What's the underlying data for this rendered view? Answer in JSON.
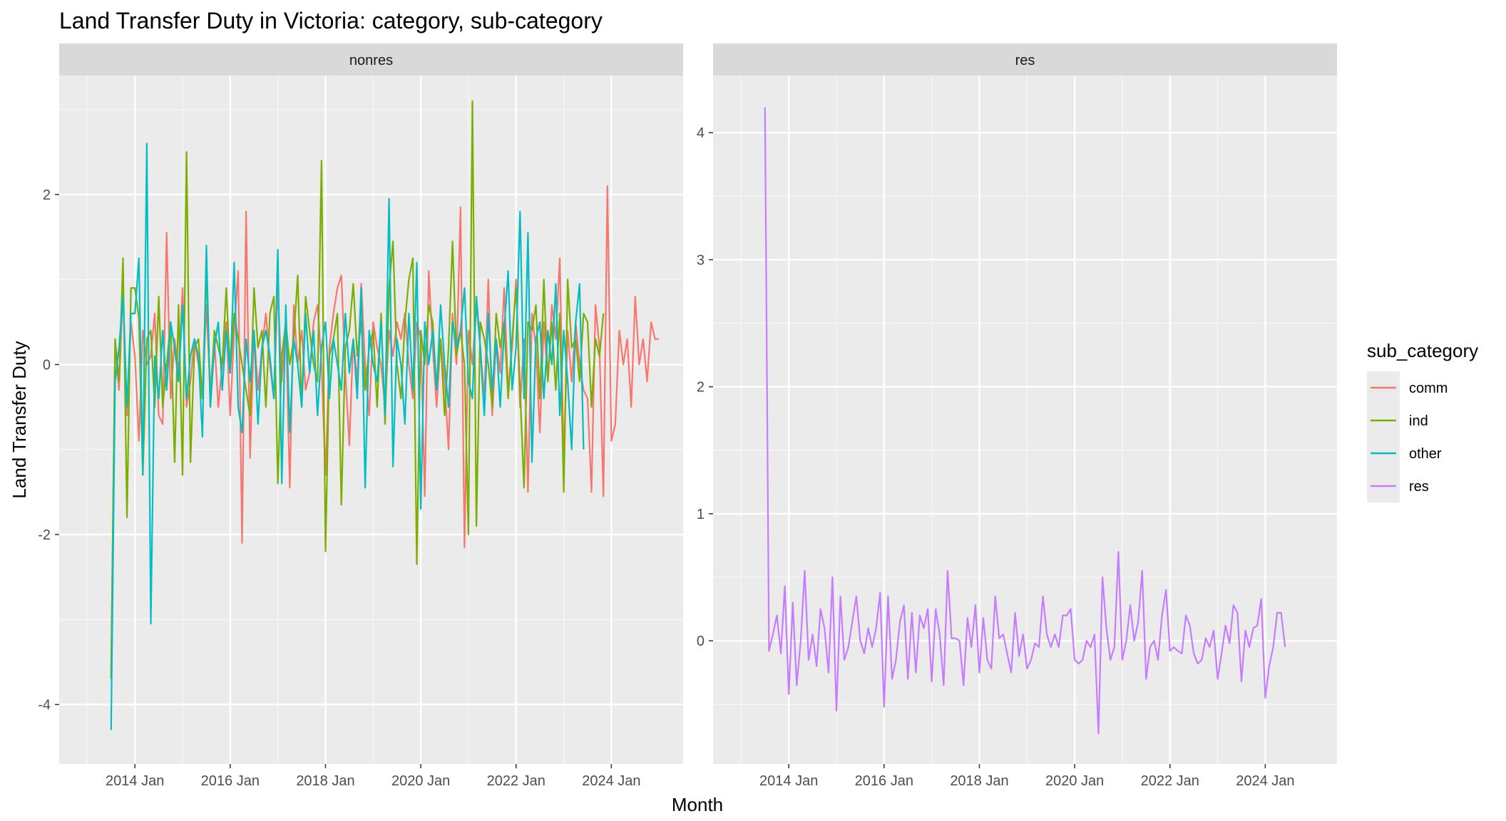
{
  "chart_data": {
    "type": "line",
    "title": "Land Transfer Duty in Victoria: category, sub-category",
    "xlabel": "Month",
    "ylabel": "Land Transfer Duty",
    "x_tick_labels": [
      "2014 Jan",
      "2016 Jan",
      "2018 Jan",
      "2020 Jan",
      "2022 Jan",
      "2024 Jan"
    ],
    "x_range": [
      "2013 Jan",
      "2024 Dec"
    ],
    "grid": true,
    "legend": {
      "title": "sub_category",
      "position": "right"
    },
    "panels": [
      {
        "name": "nonres",
        "ylim": [
          -4.7,
          3.4
        ],
        "y_ticks": [
          -4,
          -2,
          0,
          2
        ],
        "y_tick_labels": [
          "-4",
          "-2",
          "0",
          "2"
        ],
        "start": "2013 Jul",
        "series": [
          {
            "name": "comm",
            "color": "#F8766D",
            "values": [
              -3.6,
              0.2,
              -0.3,
              0.9,
              -0.6,
              0.5,
              0.1,
              -0.9,
              0.4,
              0.0,
              0.1,
              0.6,
              -0.6,
              -0.7,
              1.55,
              -0.4,
              0.3,
              -0.1,
              0.9,
              -0.5,
              -0.2,
              0.3,
              0.0,
              -0.4,
              0.7,
              -0.3,
              0.3,
              -0.5,
              0.0,
              0.5,
              -0.6,
              0.4,
              1.1,
              -2.1,
              1.8,
              -1.1,
              0.4,
              -0.3,
              0.2,
              0.6,
              0.0,
              -0.4,
              0.9,
              -0.2,
              0.5,
              -1.45,
              0.7,
              0.0,
              0.4,
              -0.3,
              -0.1,
              0.5,
              0.7,
              0.0,
              -1.3,
              0.2,
              0.6,
              0.9,
              1.05,
              -0.1,
              -0.95,
              0.3,
              -0.2,
              0.95,
              0.0,
              -0.6,
              0.5,
              0.2,
              0.0,
              -0.5,
              0.4,
              0.1,
              0.5,
              0.3,
              0.6,
              0.0,
              -0.4,
              0.5,
              0.3,
              -1.55,
              1.1,
              0.2,
              -0.5,
              0.3,
              -0.2,
              -1.0,
              0.6,
              0.0,
              1.85,
              -2.15,
              0.4,
              0.0,
              0.7,
              0.2,
              -0.4,
              1.0,
              -0.6,
              0.3,
              -0.1,
              0.9,
              -0.3,
              0.2,
              1.0,
              -0.5,
              0.3,
              -1.5,
              0.6,
              0.2,
              -0.8,
              0.5,
              -0.2,
              0.7,
              0.3,
              1.25,
              -1.1,
              0.4,
              -0.2,
              0.5,
              0.0,
              -0.3,
              -0.4,
              -1.5,
              0.7,
              0.2,
              -1.55,
              2.1,
              -0.9,
              -0.7,
              0.4,
              0.0,
              0.3,
              -0.5,
              0.8,
              0.0,
              0.3,
              -0.2,
              0.5,
              0.3,
              0.3
            ]
          },
          {
            "name": "ind",
            "color": "#7CAE00",
            "values": [
              -3.7,
              0.3,
              -0.2,
              1.25,
              -1.8,
              0.9,
              0.9,
              0.55,
              -1.3,
              0.3,
              0.4,
              -0.5,
              0.8,
              -0.5,
              0.0,
              0.5,
              -1.15,
              0.7,
              -1.3,
              2.5,
              -1.15,
              0.2,
              0.3,
              -0.4,
              1.1,
              -0.5,
              0.4,
              0.2,
              0.0,
              0.9,
              -0.1,
              0.6,
              0.3,
              0.0,
              -0.3,
              -0.6,
              0.9,
              0.2,
              0.4,
              -0.5,
              0.6,
              0.8,
              -1.4,
              0.1,
              0.5,
              0.0,
              0.3,
              1.05,
              -0.5,
              0.8,
              0.4,
              0.0,
              -0.2,
              2.4,
              -2.2,
              0.1,
              0.3,
              0.6,
              -1.65,
              0.2,
              0.4,
              0.95,
              0.1,
              0.5,
              -0.3,
              0.2,
              0.4,
              -0.5,
              0.6,
              -0.7,
              0.9,
              1.45,
              0.0,
              -0.4,
              0.5,
              1.0,
              1.25,
              -2.35,
              0.4,
              0.0,
              0.7,
              0.5,
              -0.3,
              0.3,
              -0.6,
              0.2,
              1.45,
              0.1,
              0.4,
              0.0,
              -2.0,
              3.1,
              -1.9,
              0.5,
              0.3,
              0.0,
              -0.5,
              0.6,
              0.2,
              0.5,
              -0.4,
              0.3,
              0.9,
              -0.3,
              -1.45,
              0.5,
              0.4,
              0.7,
              -0.4,
              1.0,
              -0.2,
              0.5,
              -0.3,
              0.6,
              -1.5,
              1.0,
              0.2,
              0.3,
              -0.2,
              0.6,
              0.5,
              -0.5,
              0.3,
              0.1,
              0.6
            ]
          },
          {
            "name": "other",
            "color": "#00BFC4",
            "values": [
              -4.3,
              -0.2,
              0.2,
              0.8,
              -0.5,
              0.6,
              0.6,
              1.25,
              -1.3,
              2.6,
              -3.05,
              0.1,
              -0.4,
              0.4,
              -0.3,
              0.5,
              0.2,
              -0.2,
              0.7,
              -0.4,
              0.1,
              0.3,
              0.1,
              -0.85,
              1.4,
              -0.5,
              0.2,
              0.5,
              -0.3,
              0.4,
              -0.1,
              1.2,
              -0.5,
              -0.8,
              0.3,
              -0.2,
              0.4,
              -0.7,
              0.2,
              0.4,
              0.1,
              -0.4,
              1.35,
              -1.4,
              0.7,
              -0.8,
              0.3,
              0.0,
              -0.5,
              0.6,
              -0.1,
              0.4,
              -0.6,
              0.2,
              0.5,
              -0.4,
              0.3,
              0.0,
              -0.3,
              0.6,
              -0.1,
              0.3,
              -0.4,
              0.9,
              -1.45,
              0.4,
              0.0,
              -0.2,
              0.5,
              -0.6,
              1.95,
              -1.2,
              0.3,
              0.0,
              -0.7,
              0.6,
              -0.3,
              1.2,
              -1.7,
              0.5,
              0.0,
              0.4,
              -0.3,
              0.7,
              0.0,
              -0.5,
              0.5,
              0.2,
              0.4,
              0.9,
              -0.2,
              -0.4,
              0.8,
              0.2,
              -0.6,
              0.6,
              -0.3,
              0.3,
              -0.5,
              0.4,
              1.1,
              -0.3,
              0.2,
              1.8,
              -0.4,
              1.55,
              -1.15,
              0.3,
              0.5,
              -0.4,
              0.4,
              0.0,
              0.95,
              -0.6,
              0.4,
              -0.2,
              -1.0,
              0.5,
              0.95,
              -1.0
            ]
          }
        ]
      },
      {
        "name": "res",
        "ylim": [
          -0.97,
          4.45
        ],
        "y_ticks": [
          0,
          1,
          2,
          3,
          4
        ],
        "y_tick_labels": [
          "0",
          "1",
          "2",
          "3",
          "4"
        ],
        "start": "2013 Jul",
        "series": [
          {
            "name": "res",
            "color": "#C77CFF",
            "values": [
              4.2,
              -0.08,
              0.05,
              0.2,
              -0.1,
              0.43,
              -0.42,
              0.3,
              -0.35,
              0.0,
              0.55,
              -0.15,
              0.05,
              -0.2,
              0.25,
              0.1,
              -0.25,
              0.5,
              -0.55,
              0.35,
              -0.15,
              -0.05,
              0.15,
              0.35,
              0.0,
              -0.1,
              0.1,
              -0.05,
              0.1,
              0.38,
              -0.52,
              0.35,
              -0.3,
              -0.15,
              0.15,
              0.28,
              -0.3,
              0.22,
              -0.25,
              0.2,
              0.1,
              0.25,
              -0.32,
              0.25,
              0.05,
              -0.35,
              0.55,
              0.02,
              0.02,
              0.0,
              -0.35,
              0.18,
              -0.05,
              0.28,
              -0.25,
              0.18,
              -0.15,
              -0.22,
              0.35,
              0.02,
              0.05,
              -0.1,
              -0.25,
              0.22,
              -0.12,
              0.05,
              -0.22,
              -0.15,
              -0.02,
              -0.05,
              0.35,
              0.05,
              -0.05,
              0.05,
              -0.05,
              0.2,
              0.2,
              0.25,
              -0.15,
              -0.18,
              -0.15,
              0.0,
              -0.05,
              0.05,
              -0.73,
              0.5,
              0.1,
              -0.15,
              -0.05,
              0.7,
              -0.15,
              0.0,
              0.28,
              0.0,
              0.15,
              0.55,
              -0.3,
              -0.05,
              0.0,
              -0.15,
              0.2,
              0.4,
              -0.08,
              -0.05,
              -0.08,
              -0.1,
              0.2,
              0.12,
              -0.1,
              -0.18,
              -0.15,
              0.02,
              -0.05,
              0.08,
              -0.3,
              -0.1,
              0.12,
              -0.02,
              0.28,
              0.22,
              -0.32,
              0.08,
              -0.05,
              0.1,
              0.12,
              0.33,
              -0.45,
              -0.2,
              -0.05,
              0.22,
              0.22,
              -0.05
            ]
          }
        ]
      }
    ]
  }
}
